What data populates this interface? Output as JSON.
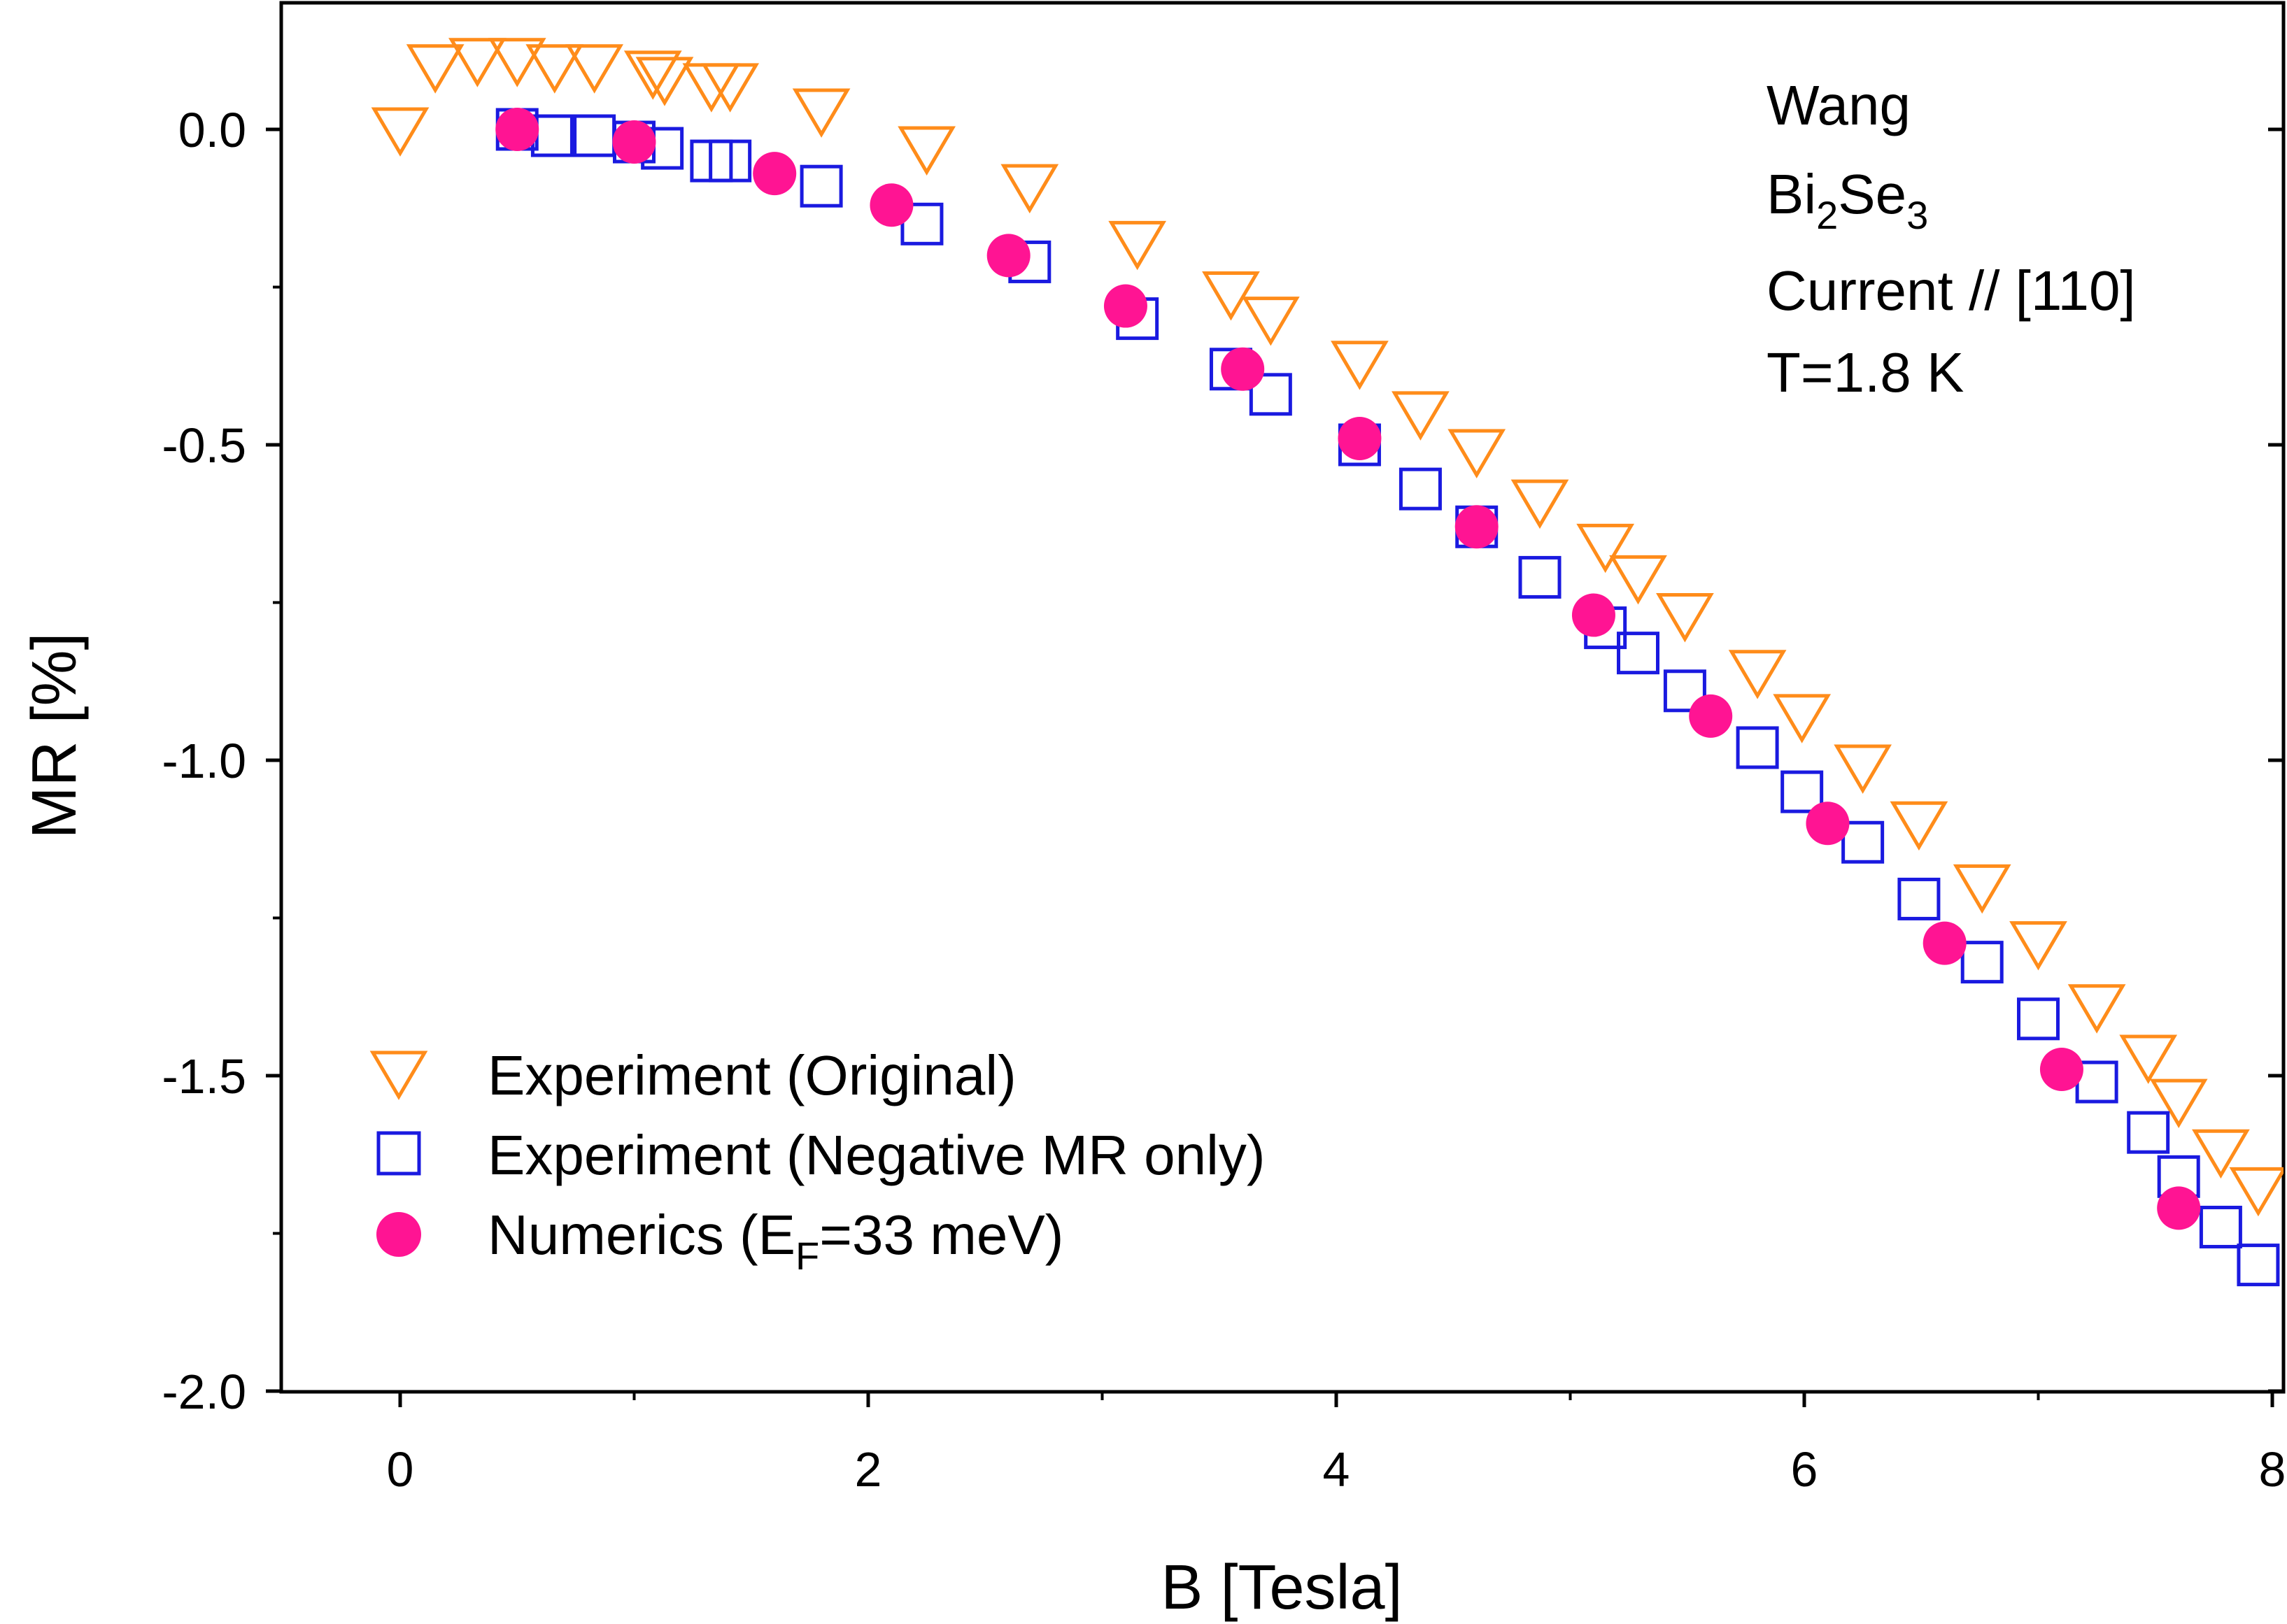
{
  "chart_data": {
    "type": "scatter",
    "xlabel": "B [Tesla]",
    "ylabel": "MR [%]",
    "xlim": [
      -0.5,
      8.0
    ],
    "ylim": [
      -2.0,
      0.2
    ],
    "xticks": [
      0,
      2,
      4,
      6,
      8
    ],
    "xtick_labels": [
      "0",
      "2",
      "4",
      "6",
      "8"
    ],
    "yticks": [
      0.0,
      -0.5,
      -1.0,
      -1.5,
      -2.0
    ],
    "ytick_labels": [
      "0.0",
      "-0.5",
      "-1.0",
      "-1.5",
      "-2.0"
    ],
    "grid": false,
    "legend_position": "bottom-left",
    "annotation": {
      "line1": "Wang",
      "line2_base1": "Bi",
      "line2_sub1": "2",
      "line2_base2": "Se",
      "line2_sub2": "3",
      "line3": "Current // [110]",
      "line4": "T=1.8 K"
    },
    "series": [
      {
        "name": "Experiment (Original)",
        "marker": "triangle-down-open",
        "color": "#FF8C1A",
        "x": [
          0.0,
          0.15,
          0.33,
          0.5,
          0.66,
          0.83,
          1.08,
          1.13,
          1.33,
          1.41,
          1.8,
          2.25,
          2.69,
          3.15,
          3.55,
          3.72,
          4.1,
          4.36,
          4.6,
          4.87,
          5.15,
          5.29,
          5.49,
          5.8,
          5.99,
          6.25,
          6.49,
          6.76,
          7.0,
          7.25,
          7.47,
          7.6,
          7.78,
          7.94
        ],
        "y": [
          0.0,
          0.1,
          0.11,
          0.11,
          0.1,
          0.1,
          0.09,
          0.08,
          0.07,
          0.07,
          0.03,
          -0.03,
          -0.09,
          -0.18,
          -0.26,
          -0.3,
          -0.37,
          -0.45,
          -0.51,
          -0.59,
          -0.66,
          -0.71,
          -0.77,
          -0.86,
          -0.93,
          -1.01,
          -1.1,
          -1.2,
          -1.29,
          -1.39,
          -1.47,
          -1.54,
          -1.62,
          -1.68
        ]
      },
      {
        "name": "Experiment (Negative MR only)",
        "marker": "square-open",
        "color": "#1A1AE0",
        "x": [
          0.5,
          0.65,
          0.83,
          1.0,
          1.12,
          1.33,
          1.41,
          1.8,
          2.23,
          2.69,
          3.15,
          3.55,
          3.72,
          4.1,
          4.36,
          4.6,
          4.87,
          5.15,
          5.29,
          5.49,
          5.8,
          5.99,
          6.25,
          6.49,
          6.76,
          7.0,
          7.25,
          7.47,
          7.6,
          7.78,
          7.94
        ],
        "y": [
          0.0,
          -0.01,
          -0.01,
          -0.02,
          -0.03,
          -0.05,
          -0.05,
          -0.09,
          -0.15,
          -0.21,
          -0.3,
          -0.38,
          -0.42,
          -0.5,
          -0.57,
          -0.63,
          -0.71,
          -0.79,
          -0.83,
          -0.89,
          -0.98,
          -1.05,
          -1.13,
          -1.22,
          -1.32,
          -1.41,
          -1.51,
          -1.59,
          -1.66,
          -1.74,
          -1.8
        ]
      },
      {
        "name": "Numerics (E_F=33 meV)",
        "marker": "circle-filled",
        "color": "#FF1493",
        "x": [
          0.5,
          1.0,
          1.6,
          2.1,
          2.6,
          3.1,
          3.6,
          4.1,
          4.6,
          5.1,
          5.6,
          6.1,
          6.6,
          7.1,
          7.6
        ],
        "y": [
          0.0,
          -0.02,
          -0.07,
          -0.12,
          -0.2,
          -0.28,
          -0.38,
          -0.49,
          -0.63,
          -0.77,
          -0.93,
          -1.1,
          -1.29,
          -1.49,
          -1.71
        ]
      }
    ],
    "legend": {
      "entry1": "Experiment (Original)",
      "entry2": "Experiment (Negative MR only)",
      "entry3_base": "Numerics (E",
      "entry3_sub": "F",
      "entry3_rest": "=33 meV)"
    }
  }
}
